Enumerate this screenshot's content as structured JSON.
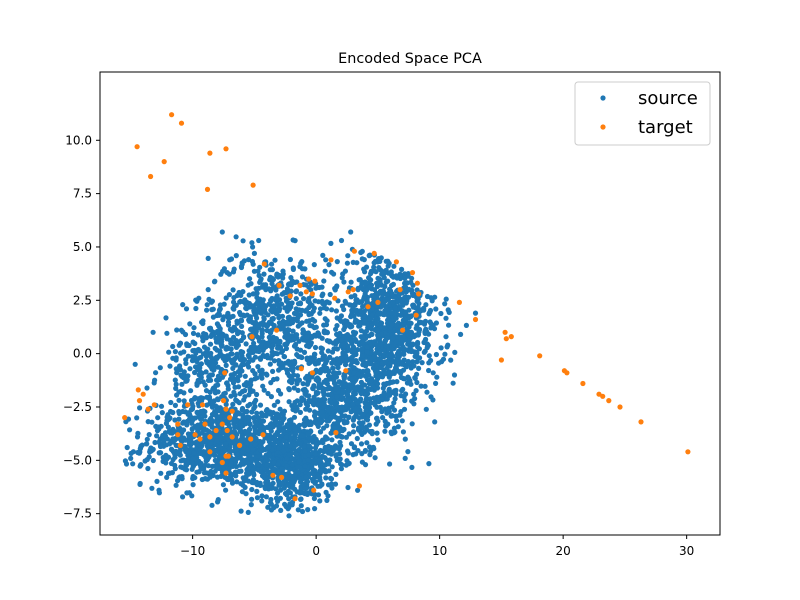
{
  "chart_data": {
    "type": "scatter",
    "title": "Encoded Space PCA",
    "xlabel": "",
    "ylabel": "",
    "xlim": [
      -17.5,
      32.7
    ],
    "ylim": [
      -8.5,
      13.2
    ],
    "xticks": [
      -10,
      0,
      10,
      20,
      30
    ],
    "yticks": [
      -7.5,
      -5.0,
      -2.5,
      0.0,
      2.5,
      5.0,
      7.5,
      10.0
    ],
    "grid": false,
    "legend_position": "top-right",
    "series": [
      {
        "name": "source",
        "color": "#1f77b4",
        "clusters_note_free": true,
        "clusters": [
          {
            "cx": -8.0,
            "cy": -4.2,
            "sx": 3.0,
            "sy": 1.0,
            "n": 900
          },
          {
            "cx": -2.0,
            "cy": -5.0,
            "sx": 2.0,
            "sy": 1.0,
            "n": 700
          },
          {
            "cx": -3.5,
            "cy": 1.5,
            "sx": 2.6,
            "sy": 1.6,
            "n": 650
          },
          {
            "cx": 5.5,
            "cy": 1.0,
            "sx": 2.2,
            "sy": 1.8,
            "n": 1100
          },
          {
            "cx": 2.0,
            "cy": -2.2,
            "sx": 2.0,
            "sy": 1.3,
            "n": 500
          },
          {
            "cx": -8.5,
            "cy": -0.8,
            "sx": 2.0,
            "sy": 1.2,
            "n": 300
          }
        ],
        "points": [
          [
            -15.3,
            -4.4
          ],
          [
            -13.2,
            1.0
          ],
          [
            -7.6,
            5.7
          ],
          [
            -10.8,
            2.3
          ],
          [
            -10.5,
            2.1
          ],
          [
            -7.0,
            4.4
          ],
          [
            -5.2,
            5.2
          ],
          [
            2.8,
            5.7
          ],
          [
            -1.7,
            5.3
          ],
          [
            -5.0,
            4.7
          ],
          [
            12.9,
            1.9
          ],
          [
            11.7,
            0.9
          ],
          [
            11.2,
            -1.0
          ],
          [
            -2.2,
            -7.6
          ],
          [
            -1.1,
            -7.4
          ],
          [
            -4.4,
            -6.9
          ],
          [
            0.3,
            -6.9
          ],
          [
            -12.1,
            -5.8
          ],
          [
            -14.2,
            -5.2
          ],
          [
            9.6,
            -3.2
          ],
          [
            4.0,
            -5.2
          ],
          [
            3.2,
            -4.7
          ],
          [
            -9.5,
            2.6
          ],
          [
            -7.2,
            3.8
          ]
        ]
      },
      {
        "name": "target",
        "color": "#ff7f0e",
        "points": [
          [
            -11.7,
            11.2
          ],
          [
            -10.9,
            10.8
          ],
          [
            -14.5,
            9.7
          ],
          [
            -12.3,
            9.0
          ],
          [
            -8.6,
            9.4
          ],
          [
            -7.3,
            9.6
          ],
          [
            -13.4,
            8.3
          ],
          [
            -8.8,
            7.7
          ],
          [
            -5.1,
            7.9
          ],
          [
            -4.2,
            4.2
          ],
          [
            1.2,
            4.4
          ],
          [
            3.1,
            4.8
          ],
          [
            4.7,
            4.7
          ],
          [
            6.5,
            4.3
          ],
          [
            7.8,
            3.8
          ],
          [
            8.2,
            3.3
          ],
          [
            6.8,
            3.0
          ],
          [
            8.3,
            2.8
          ],
          [
            5.0,
            2.4
          ],
          [
            4.2,
            2.2
          ],
          [
            3.0,
            3.0
          ],
          [
            1.5,
            2.6
          ],
          [
            -0.6,
            3.5
          ],
          [
            -1.3,
            3.2
          ],
          [
            -0.1,
            3.4
          ],
          [
            -3.0,
            3.2
          ],
          [
            -2.1,
            2.7
          ],
          [
            -0.8,
            2.9
          ],
          [
            -0.3,
            2.8
          ],
          [
            2.6,
            2.9
          ],
          [
            11.6,
            2.4
          ],
          [
            12.9,
            1.6
          ],
          [
            8.1,
            1.8
          ],
          [
            7.0,
            1.1
          ],
          [
            -3.2,
            1.1
          ],
          [
            -5.2,
            0.8
          ],
          [
            -1.2,
            -0.7
          ],
          [
            -0.3,
            -0.9
          ],
          [
            2.4,
            -0.8
          ],
          [
            -7.4,
            -0.9
          ],
          [
            -14.4,
            -1.7
          ],
          [
            -14.0,
            -1.9
          ],
          [
            -14.3,
            -2.2
          ],
          [
            -13.6,
            -2.6
          ],
          [
            -13.1,
            -2.4
          ],
          [
            -10.4,
            -2.4
          ],
          [
            -9.2,
            -2.4
          ],
          [
            -7.5,
            -2.2
          ],
          [
            -7.3,
            -2.6
          ],
          [
            -6.8,
            -2.7
          ],
          [
            -7.0,
            -3.0
          ],
          [
            -15.5,
            -3.0
          ],
          [
            -11.2,
            -3.3
          ],
          [
            -9.0,
            -3.3
          ],
          [
            -7.6,
            -3.3
          ],
          [
            -11.2,
            -3.8
          ],
          [
            -9.8,
            -3.8
          ],
          [
            -9.4,
            -4.0
          ],
          [
            -8.6,
            -3.9
          ],
          [
            -8.1,
            -3.6
          ],
          [
            -7.2,
            -3.6
          ],
          [
            -6.8,
            -3.9
          ],
          [
            -11.0,
            -4.3
          ],
          [
            -6.2,
            -4.3
          ],
          [
            -5.3,
            -4.0
          ],
          [
            -4.3,
            -3.8
          ],
          [
            -8.6,
            -4.6
          ],
          [
            -7.3,
            -4.8
          ],
          [
            -7.1,
            -4.8
          ],
          [
            -7.6,
            -5.1
          ],
          [
            -7.3,
            -5.6
          ],
          [
            -3.5,
            -5.7
          ],
          [
            -2.8,
            -5.8
          ],
          [
            -1.7,
            -6.8
          ],
          [
            -0.2,
            -6.4
          ],
          [
            3.5,
            -6.2
          ],
          [
            1.6,
            -3.7
          ],
          [
            15.0,
            -0.3
          ],
          [
            15.3,
            1.0
          ],
          [
            15.4,
            0.7
          ],
          [
            15.8,
            0.8
          ],
          [
            18.1,
            -0.1
          ],
          [
            20.1,
            -0.8
          ],
          [
            20.3,
            -0.9
          ],
          [
            21.6,
            -1.4
          ],
          [
            22.9,
            -1.9
          ],
          [
            23.2,
            -2.0
          ],
          [
            23.7,
            -2.2
          ],
          [
            24.6,
            -2.5
          ],
          [
            26.3,
            -3.2
          ],
          [
            30.1,
            -4.6
          ]
        ]
      }
    ]
  }
}
